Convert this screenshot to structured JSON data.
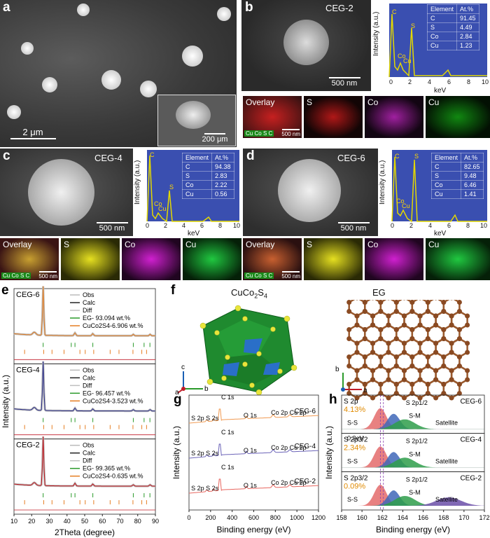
{
  "panels": {
    "a": {
      "label": "a",
      "scale_main": "2 μm",
      "scale_inset": "200 μm"
    },
    "b": {
      "label": "b",
      "sample": "CEG-2",
      "scale": "500 nm",
      "scale_map": "500 nm",
      "table": {
        "h1": "Element",
        "h2": "At.%",
        "rows": [
          [
            "C",
            "91.45"
          ],
          [
            "S",
            "4.49"
          ],
          [
            "Co",
            "2.84"
          ],
          [
            "Cu",
            "1.23"
          ]
        ]
      },
      "maps": [
        "Overlay",
        "S",
        "Co",
        "Cu"
      ]
    },
    "c": {
      "label": "c",
      "sample": "CEG-4",
      "scale": "500 nm",
      "scale_map": "500 nm",
      "table": {
        "h1": "Element",
        "h2": "At.%",
        "rows": [
          [
            "C",
            "94.38"
          ],
          [
            "S",
            "2.83"
          ],
          [
            "Co",
            "2.22"
          ],
          [
            "Cu",
            "0.56"
          ]
        ]
      },
      "maps": [
        "Overlay",
        "S",
        "Co",
        "Cu"
      ]
    },
    "d": {
      "label": "d",
      "sample": "CEG-6",
      "scale": "500 nm",
      "scale_map": "500 nm",
      "table": {
        "h1": "Element",
        "h2": "At.%",
        "rows": [
          [
            "C",
            "82.65"
          ],
          [
            "S",
            "9.48"
          ],
          [
            "Co",
            "6.46"
          ],
          [
            "Cu",
            "1.41"
          ]
        ]
      },
      "maps": [
        "Overlay",
        "S",
        "Co",
        "Cu"
      ]
    },
    "e": {
      "label": "e"
    },
    "f": {
      "label": "f",
      "title1": "CuCo",
      "title1_sub2": "2",
      "title1_s": "S",
      "title1_sub4": "4",
      "title2": "EG",
      "axes1": [
        "c",
        "a",
        "b"
      ],
      "axes2": [
        "b",
        "a"
      ]
    },
    "g": {
      "label": "g"
    },
    "h": {
      "label": "h"
    }
  },
  "legend_chip": [
    "Cu",
    "Co",
    "S",
    "C"
  ],
  "eds_axes": {
    "ylabel": "Intensity (a.u.)",
    "xlabel": "keV",
    "ticks": [
      "0",
      "2",
      "4",
      "6",
      "8",
      "10"
    ],
    "peaks": [
      "C",
      "S",
      "Co",
      "Cu",
      "Co",
      "Cu",
      "Co",
      "Cu"
    ]
  },
  "chart_data": [
    {
      "type": "line",
      "id": "xrd",
      "xlabel": "2Theta (degree)",
      "ylabel": "Intensity (a.u.)",
      "xlim": [
        10,
        90
      ],
      "xticks": [
        10,
        20,
        30,
        40,
        50,
        60,
        70,
        80,
        90
      ],
      "panels": [
        {
          "sample": "CEG-6",
          "legend": [
            "Obs",
            "Calc",
            "Diff",
            "EG- 93.094 wt.%",
            "CuCo2S4-6.906 wt.%"
          ],
          "calc_color": "#e67e22"
        },
        {
          "sample": "CEG-4",
          "legend": [
            "Obs",
            "Calc",
            "Diff",
            "EG- 96.457 wt.%",
            "CuCo2S4-3.523 wt.%"
          ],
          "calc_color": "#2c2f8a"
        },
        {
          "sample": "CEG-2",
          "legend": [
            "Obs",
            "Calc",
            "Diff",
            "EG- 99.365 wt.%",
            "CuCo2S4-0.635 wt.%"
          ],
          "calc_color": "#c0141b"
        }
      ],
      "peaks_x": [
        26.5,
        21.5,
        44.5,
        54.6,
        77.5,
        87.0
      ],
      "eg_ticks": [
        26.5,
        42.4,
        44.5,
        54.6,
        77.5,
        83.6,
        86.9
      ],
      "cuco_ticks": [
        16,
        26.8,
        31.5,
        38.3,
        47.3,
        50.3,
        55.1,
        64.4,
        69.4,
        77.3,
        82.3,
        85
      ]
    },
    {
      "type": "line",
      "id": "xps_survey",
      "xlabel": "Binding energy (eV)",
      "ylabel": "Intensity (a.u.)",
      "xlim": [
        0,
        1200
      ],
      "xticks": [
        0,
        200,
        400,
        600,
        800,
        1000,
        1200
      ],
      "series": [
        {
          "name": "CEG-6",
          "color": "#f19a52"
        },
        {
          "name": "CEG-4",
          "color": "#6c64b8"
        },
        {
          "name": "CEG-2",
          "color": "#e8665f"
        }
      ],
      "annotations": [
        "C 1s",
        "S 2p",
        "S 2s",
        "O 1s",
        "Co 2p",
        "Cu 2p"
      ]
    },
    {
      "type": "area",
      "id": "xps_s2p",
      "xlabel": "Binding energy (eV)",
      "ylabel": "Intensity (a.u.)",
      "xlim": [
        158,
        172
      ],
      "xticks": [
        158,
        160,
        162,
        164,
        166,
        168,
        170,
        172
      ],
      "panels": [
        {
          "sample": "CEG-6",
          "percent": "4.13%",
          "labels": [
            "S 2p",
            "S 2p1/2",
            "S-S",
            "S-M",
            "Satellite"
          ]
        },
        {
          "sample": "CEG-4",
          "percent": "2.34%",
          "labels": [
            "S 2p3/2",
            "S 2p1/2",
            "S-S",
            "S-M",
            "Satellite"
          ],
          "shift": "0.3eV"
        },
        {
          "sample": "CEG-2",
          "percent": "0.09%",
          "labels": [
            "S 2p3/2",
            "S 2p1/2",
            "S-S",
            "S-M",
            "Satellite"
          ]
        }
      ],
      "component_colors": {
        "S-S": "#e46b6b",
        "S-M": "#3f67b8",
        "Satellite": "#2e9d4a",
        "Satellite2": "#6b4fa8"
      }
    }
  ]
}
